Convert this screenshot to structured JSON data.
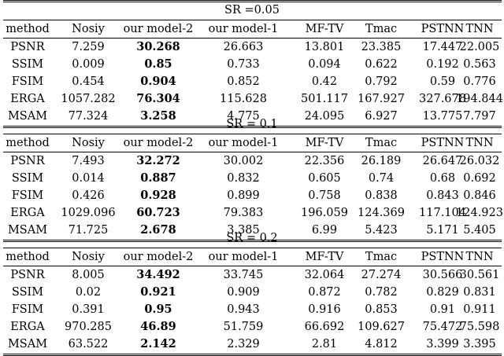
{
  "table": {
    "blocks": [
      {
        "title": "SR =0.05",
        "header": [
          "method",
          "Nosiy",
          "our model-2",
          "our model-1",
          "MF-TV",
          "Tmac",
          "PSTNN",
          "TNN"
        ],
        "rows": [
          [
            "PSNR",
            "7.259",
            "30.268",
            "26.663",
            "13.801",
            "23.385",
            "17.447",
            "22.005"
          ],
          [
            "SSIM",
            "0.009",
            "0.85",
            "0.733",
            "0.094",
            "0.622",
            "0.192",
            "0.563"
          ],
          [
            "FSIM",
            "0.454",
            "0.904",
            "0.852",
            "0.42",
            "0.792",
            "0.59",
            "0.776"
          ],
          [
            "ERGA",
            "1057.282",
            "76.304",
            "115.628",
            "501.117",
            "167.927",
            "327.678",
            "194.844"
          ],
          [
            "MSAM",
            "77.324",
            "3.258",
            "4.775",
            "24.095",
            "6.927",
            "13.775",
            "7.797"
          ]
        ]
      },
      {
        "title": "SR = 0.1",
        "header": [
          "method",
          "Nosiy",
          "our model-2",
          "our model-1",
          "MF-TV",
          "Tmac",
          "PSTNN",
          "TNN"
        ],
        "rows": [
          [
            "PSNR",
            "7.493",
            "32.272",
            "30.002",
            "22.356",
            "26.189",
            "26.647",
            "26.032"
          ],
          [
            "SSIM",
            "0.014",
            "0.887",
            "0.832",
            "0.605",
            "0.74",
            "0.68",
            "0.692"
          ],
          [
            "FSIM",
            "0.426",
            "0.928",
            "0.899",
            "0.758",
            "0.838",
            "0.843",
            "0.846"
          ],
          [
            "ERGA",
            "1029.096",
            "60.723",
            "79.383",
            "196.059",
            "124.369",
            "117.104",
            "124.923"
          ],
          [
            "MSAM",
            "71.725",
            "2.678",
            "3.385",
            "6.99",
            "5.423",
            "5.171",
            "5.405"
          ]
        ]
      },
      {
        "title": "SR = 0.2",
        "header": [
          "method",
          "Nosiy",
          "our model-2",
          "our model-1",
          "MF-TV",
          "Tmac",
          "PSTNN",
          "TNN"
        ],
        "rows": [
          [
            "PSNR",
            "8.005",
            "34.492",
            "33.745",
            "32.064",
            "27.274",
            "30.566",
            "30.561"
          ],
          [
            "SSIM",
            "0.02",
            "0.921",
            "0.909",
            "0.872",
            "0.782",
            "0.829",
            "0.831"
          ],
          [
            "FSIM",
            "0.391",
            "0.95",
            "0.943",
            "0.916",
            "0.853",
            "0.91",
            "0.911"
          ],
          [
            "ERGA",
            "970.285",
            "46.89",
            "51.759",
            "66.692",
            "109.627",
            "75.472",
            "75.598"
          ],
          [
            "MSAM",
            "63.522",
            "2.142",
            "2.329",
            "2.81",
            "4.812",
            "3.399",
            "3.395"
          ]
        ]
      }
    ]
  }
}
